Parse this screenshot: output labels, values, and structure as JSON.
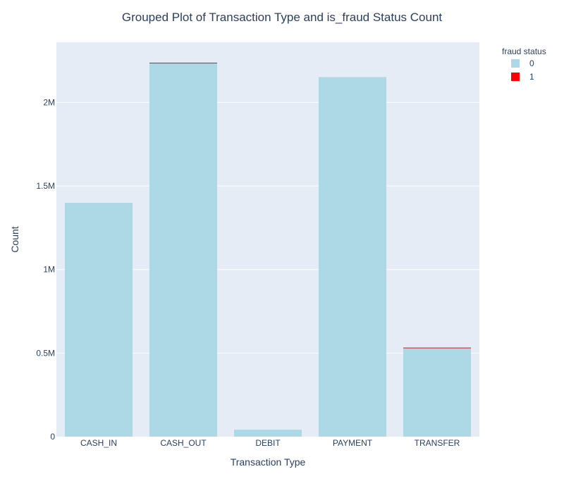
{
  "chart_data": {
    "type": "bar",
    "barmode": "stack",
    "title": "Grouped Plot of Transaction Type and is_fraud Status Count",
    "xlabel": "Transaction Type",
    "ylabel": "Count",
    "categories": [
      "CASH_IN",
      "CASH_OUT",
      "DEBIT",
      "PAYMENT",
      "TRANSFER"
    ],
    "series": [
      {
        "name": "0",
        "color": "#add8e6",
        "values": [
          1399284,
          2233384,
          41432,
          2151495,
          528812
        ]
      },
      {
        "name": "1",
        "color": "#ff0000",
        "values": [
          0,
          4116,
          0,
          0,
          4097
        ]
      }
    ],
    "ylim": [
      0,
      2360000
    ],
    "yticks": [
      0,
      500000,
      1000000,
      1500000,
      2000000
    ],
    "ytick_labels": [
      "0",
      "0.5M",
      "1M",
      "1.5M",
      "2M"
    ],
    "legend": {
      "title": "fraud status",
      "placement": "top-right"
    },
    "plot_background": "#e5ecf6",
    "gridline_color": "#ffffff",
    "grid": true
  }
}
